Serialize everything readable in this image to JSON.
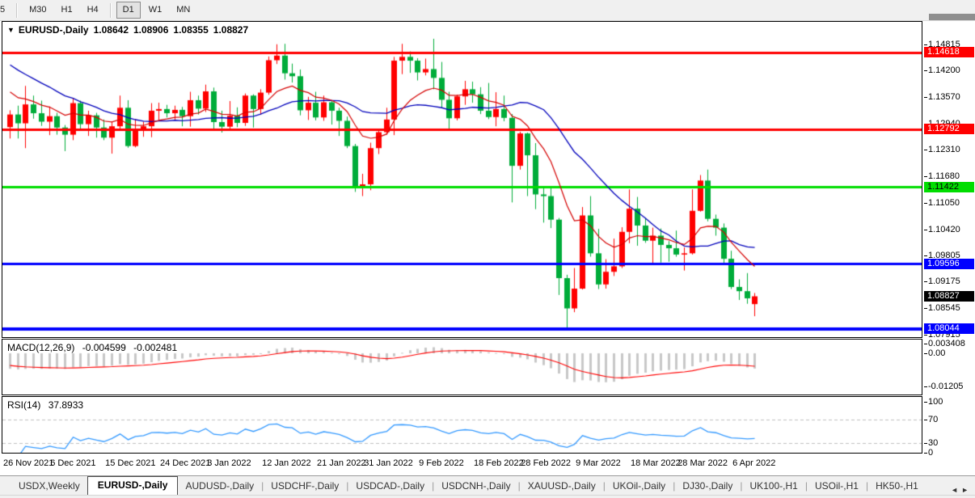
{
  "icons": {
    "dropdown": "▼",
    "scroll_left": "◄",
    "scroll_right": "►"
  },
  "toolbar": {
    "timeframes": [
      {
        "label": "5",
        "active": false,
        "cut": true
      },
      {
        "sep": true
      },
      {
        "label": "M30",
        "active": false
      },
      {
        "label": "H1",
        "active": false
      },
      {
        "label": "H4",
        "active": false
      },
      {
        "sep": true
      },
      {
        "label": "D1",
        "active": true
      },
      {
        "label": "W1",
        "active": false
      },
      {
        "label": "MN",
        "active": false
      }
    ]
  },
  "chart": {
    "symbol_title": "EURUSD-,Daily",
    "open": "1.08642",
    "high": "1.08906",
    "low": "1.08355",
    "close": "1.08827"
  },
  "price_axis": {
    "ticks": [
      {
        "label": "1.14815",
        "price": 1.14815
      },
      {
        "label": "1.14200",
        "price": 1.142
      },
      {
        "label": "1.13570",
        "price": 1.1357
      },
      {
        "label": "1.12940",
        "price": 1.1294
      },
      {
        "label": "1.12310",
        "price": 1.1231
      },
      {
        "label": "1.11680",
        "price": 1.1168
      },
      {
        "label": "1.11050",
        "price": 1.1105
      },
      {
        "label": "1.10420",
        "price": 1.1042
      },
      {
        "label": "1.09805",
        "price": 1.09805
      },
      {
        "label": "1.09175",
        "price": 1.09175
      },
      {
        "label": "1.08545",
        "price": 1.08545
      },
      {
        "label": "1.07915",
        "price": 1.07915
      }
    ],
    "current_price": {
      "label": "1.08827",
      "price": 1.08827,
      "bg": "#000000",
      "text": "#ffffff"
    }
  },
  "macd": {
    "name": "MACD(12,26,9)",
    "value_main": "-0.004599",
    "value_signal": "-0.002481",
    "axis": [
      {
        "label": "0.003408",
        "value": 0.003408
      },
      {
        "label": "0.00",
        "value": 0
      },
      {
        "label": "-0.01205",
        "value": -0.01205
      }
    ]
  },
  "rsi": {
    "name": "RSI(14)",
    "value": "37.8933",
    "axis": [
      {
        "label": "100",
        "value": 100
      },
      {
        "label": "70",
        "value": 70
      },
      {
        "label": "30",
        "value": 30
      },
      {
        "label": "0",
        "value": 0
      }
    ]
  },
  "date_axis": [
    {
      "label": "26 Nov 2021",
      "index": 0
    },
    {
      "label": "6 Dec 2021",
      "index": 6
    },
    {
      "label": "15 Dec 2021",
      "index": 13
    },
    {
      "label": "24 Dec 2021",
      "index": 20
    },
    {
      "label": "3 Jan 2022",
      "index": 26
    },
    {
      "label": "12 Jan 2022",
      "index": 33
    },
    {
      "label": "21 Jan 2022",
      "index": 40
    },
    {
      "label": "31 Jan 2022",
      "index": 46
    },
    {
      "label": "9 Feb 2022",
      "index": 53
    },
    {
      "label": "18 Feb 2022",
      "index": 60
    },
    {
      "label": "28 Feb 2022",
      "index": 66
    },
    {
      "label": "9 Mar 2022",
      "index": 73
    },
    {
      "label": "18 Mar 2022",
      "index": 80
    },
    {
      "label": "28 Mar 2022",
      "index": 86
    },
    {
      "label": "6 Apr 2022",
      "index": 93
    }
  ],
  "tabs": [
    {
      "label": "USDX,Weekly",
      "active": false
    },
    {
      "label": "EURUSD-,Daily",
      "active": true
    },
    {
      "label": "AUDUSD-,Daily",
      "active": false
    },
    {
      "label": "USDCHF-,Daily",
      "active": false
    },
    {
      "label": "USDCAD-,Daily",
      "active": false
    },
    {
      "label": "USDCNH-,Daily",
      "active": false
    },
    {
      "label": "XAUUSD-,Daily",
      "active": false
    },
    {
      "label": "UKOil-,Daily",
      "active": false
    },
    {
      "label": "DJ30-,Daily",
      "active": false
    },
    {
      "label": "UK100-,H1",
      "active": false
    },
    {
      "label": "USOil-,H1",
      "active": false
    },
    {
      "label": "HK50-,H1",
      "active": false
    }
  ],
  "chart_data": {
    "type": "candlestick",
    "title": "EURUSD-,Daily",
    "ylim": [
      1.07915,
      1.14815
    ],
    "colors": {
      "bull": "#FF0000",
      "bear": "#00AC3A",
      "ma_slow": "#0000BB",
      "ma_fast": "#D40000",
      "macd_hist": "#C8C8C8",
      "macd_signal": "#FF0000",
      "rsi_line": "#3399FF",
      "rsi_dash": "#BFBFBF"
    },
    "levels": [
      {
        "label": "1.14618",
        "price": 1.14618,
        "color": "#FF0000",
        "text": "#FFFFFF",
        "width": 3
      },
      {
        "label": "1.12792",
        "price": 1.12792,
        "color": "#FF0000",
        "text": "#FFFFFF",
        "width": 3
      },
      {
        "label": "1.11422",
        "price": 1.11422,
        "color": "#00DD00",
        "text": "#000000",
        "width": 3
      },
      {
        "label": "1.09596",
        "price": 1.09596,
        "color": "#0000FF",
        "text": "#FFFFFF",
        "width": 3
      },
      {
        "label": "1.08044",
        "price": 1.08044,
        "color": "#0000FF",
        "text": "#FFFFFF",
        "width": 4
      }
    ],
    "overlays": {
      "ma_slow_period": 20,
      "ma_fast_period": 10
    },
    "macd_params": [
      12,
      26,
      9
    ],
    "rsi_period": 14,
    "rsi_levels": [
      70,
      30
    ],
    "prehistory_closes": [
      1.156,
      1.1548,
      1.1535,
      1.1524,
      1.1512,
      1.15,
      1.1488,
      1.1476,
      1.1464,
      1.1452,
      1.144,
      1.1428,
      1.1417,
      1.1406,
      1.1395,
      1.1384,
      1.1373,
      1.1362,
      1.134,
      1.13
    ],
    "candles_ohlc": [
      [
        1.1285,
        1.1325,
        1.1258,
        1.1315
      ],
      [
        1.1315,
        1.1336,
        1.1258,
        1.1294
      ],
      [
        1.1294,
        1.1383,
        1.1235,
        1.1339
      ],
      [
        1.1339,
        1.136,
        1.1305,
        1.1318
      ],
      [
        1.1318,
        1.1348,
        1.1288,
        1.1298
      ],
      [
        1.1298,
        1.1334,
        1.1266,
        1.1311
      ],
      [
        1.1311,
        1.1319,
        1.1267,
        1.1284
      ],
      [
        1.1284,
        1.129,
        1.1228,
        1.1267
      ],
      [
        1.1267,
        1.1354,
        1.1254,
        1.1342
      ],
      [
        1.1342,
        1.1348,
        1.128,
        1.1292
      ],
      [
        1.1292,
        1.1324,
        1.1264,
        1.1313
      ],
      [
        1.1313,
        1.1319,
        1.126,
        1.1284
      ],
      [
        1.1284,
        1.1303,
        1.1254,
        1.126
      ],
      [
        1.126,
        1.1298,
        1.1222,
        1.1287
      ],
      [
        1.1287,
        1.136,
        1.128,
        1.1331
      ],
      [
        1.1331,
        1.1349,
        1.1236,
        1.124
      ],
      [
        1.124,
        1.1304,
        1.1237,
        1.1278
      ],
      [
        1.1278,
        1.1298,
        1.1262,
        1.1287
      ],
      [
        1.1287,
        1.1342,
        1.1261,
        1.1324
      ],
      [
        1.1324,
        1.1343,
        1.1302,
        1.1328
      ],
      [
        1.1328,
        1.1338,
        1.1308,
        1.1318
      ],
      [
        1.1318,
        1.1336,
        1.1302,
        1.1326
      ],
      [
        1.1326,
        1.1333,
        1.1287,
        1.1311
      ],
      [
        1.1311,
        1.1369,
        1.1286,
        1.1349
      ],
      [
        1.1349,
        1.136,
        1.1315,
        1.1329
      ],
      [
        1.1329,
        1.1386,
        1.1321,
        1.137
      ],
      [
        1.137,
        1.1379,
        1.1279,
        1.1297
      ],
      [
        1.1297,
        1.1324,
        1.1272,
        1.1286
      ],
      [
        1.1286,
        1.1347,
        1.128,
        1.1312
      ],
      [
        1.1312,
        1.1332,
        1.1285,
        1.1295
      ],
      [
        1.1295,
        1.1365,
        1.1288,
        1.136
      ],
      [
        1.136,
        1.1363,
        1.1284,
        1.1328
      ],
      [
        1.1328,
        1.1375,
        1.1315,
        1.1367
      ],
      [
        1.1367,
        1.1453,
        1.1362,
        1.1444
      ],
      [
        1.1444,
        1.1482,
        1.1435,
        1.1455
      ],
      [
        1.1455,
        1.1483,
        1.1398,
        1.1413
      ],
      [
        1.1413,
        1.1436,
        1.1391,
        1.1406
      ],
      [
        1.1406,
        1.1422,
        1.1313,
        1.1325
      ],
      [
        1.1325,
        1.1357,
        1.1302,
        1.1343
      ],
      [
        1.1343,
        1.1369,
        1.1301,
        1.1308
      ],
      [
        1.1308,
        1.136,
        1.13,
        1.1344
      ],
      [
        1.1344,
        1.1349,
        1.1291,
        1.1324
      ],
      [
        1.1324,
        1.1331,
        1.1264,
        1.13
      ],
      [
        1.13,
        1.131,
        1.1235,
        1.124
      ],
      [
        1.124,
        1.1245,
        1.1131,
        1.1144
      ],
      [
        1.1144,
        1.1174,
        1.1121,
        1.1149
      ],
      [
        1.1149,
        1.1248,
        1.1135,
        1.1235
      ],
      [
        1.1235,
        1.1279,
        1.1221,
        1.1273
      ],
      [
        1.1273,
        1.1331,
        1.1267,
        1.1303
      ],
      [
        1.1303,
        1.1452,
        1.1266,
        1.1443
      ],
      [
        1.1443,
        1.1483,
        1.1411,
        1.1452
      ],
      [
        1.1452,
        1.1465,
        1.1414,
        1.1443
      ],
      [
        1.1443,
        1.1449,
        1.1396,
        1.1415
      ],
      [
        1.1415,
        1.1448,
        1.1408,
        1.1423
      ],
      [
        1.1423,
        1.1495,
        1.1375,
        1.1402
      ],
      [
        1.1402,
        1.144,
        1.133,
        1.135
      ],
      [
        1.135,
        1.1369,
        1.1278,
        1.1306
      ],
      [
        1.1306,
        1.1362,
        1.1301,
        1.1358
      ],
      [
        1.1358,
        1.1395,
        1.1338,
        1.1375
      ],
      [
        1.1375,
        1.1393,
        1.1343,
        1.1363
      ],
      [
        1.1363,
        1.138,
        1.1316,
        1.1324
      ],
      [
        1.1324,
        1.139,
        1.1304,
        1.1309
      ],
      [
        1.1309,
        1.1368,
        1.1287,
        1.1328
      ],
      [
        1.1328,
        1.136,
        1.1299,
        1.1307
      ],
      [
        1.1307,
        1.1316,
        1.1106,
        1.1193
      ],
      [
        1.1193,
        1.1274,
        1.1184,
        1.127
      ],
      [
        1.127,
        1.1272,
        1.1121,
        1.1218
      ],
      [
        1.1218,
        1.1247,
        1.109,
        1.1125
      ],
      [
        1.1125,
        1.1145,
        1.1058,
        1.1121
      ],
      [
        1.1121,
        1.114,
        1.1045,
        1.1065
      ],
      [
        1.1065,
        1.1069,
        1.0886,
        1.0926
      ],
      [
        1.0926,
        1.0934,
        1.0806,
        1.0854
      ],
      [
        1.0854,
        1.095,
        1.0845,
        1.0901
      ],
      [
        1.0901,
        1.1095,
        1.0899,
        1.1075
      ],
      [
        1.1075,
        1.1121,
        1.0977,
        1.0985
      ],
      [
        1.0985,
        1.1043,
        1.09,
        1.0911
      ],
      [
        1.0911,
        1.0971,
        1.0901,
        1.0941
      ],
      [
        1.0941,
        1.102,
        1.0931,
        1.0954
      ],
      [
        1.0954,
        1.1047,
        1.095,
        1.1036
      ],
      [
        1.1036,
        1.1137,
        1.1009,
        1.1091
      ],
      [
        1.1091,
        1.1119,
        1.1003,
        1.1051
      ],
      [
        1.1051,
        1.1069,
        1.101,
        1.1015
      ],
      [
        1.1015,
        1.1046,
        1.0962,
        1.1027
      ],
      [
        1.1027,
        1.1044,
        1.0963,
        1.1005
      ],
      [
        1.1005,
        1.1014,
        1.0965,
        1.0997
      ],
      [
        1.0997,
        1.1039,
        1.0977,
        1.0982
      ],
      [
        1.0982,
        1.0999,
        1.0944,
        1.0985
      ],
      [
        1.0985,
        1.1137,
        1.0982,
        1.1086
      ],
      [
        1.1086,
        1.1171,
        1.1084,
        1.1158
      ],
      [
        1.1158,
        1.1184,
        1.1061,
        1.1067
      ],
      [
        1.1067,
        1.1077,
        1.1027,
        1.1046
      ],
      [
        1.1046,
        1.1056,
        1.096,
        1.0972
      ],
      [
        1.0972,
        1.0991,
        1.09,
        1.0905
      ],
      [
        1.0905,
        1.0923,
        1.0874,
        1.0895
      ],
      [
        1.0895,
        1.0938,
        1.0865,
        1.0878
      ],
      [
        1.08642,
        1.08906,
        1.08355,
        1.08827
      ]
    ]
  }
}
